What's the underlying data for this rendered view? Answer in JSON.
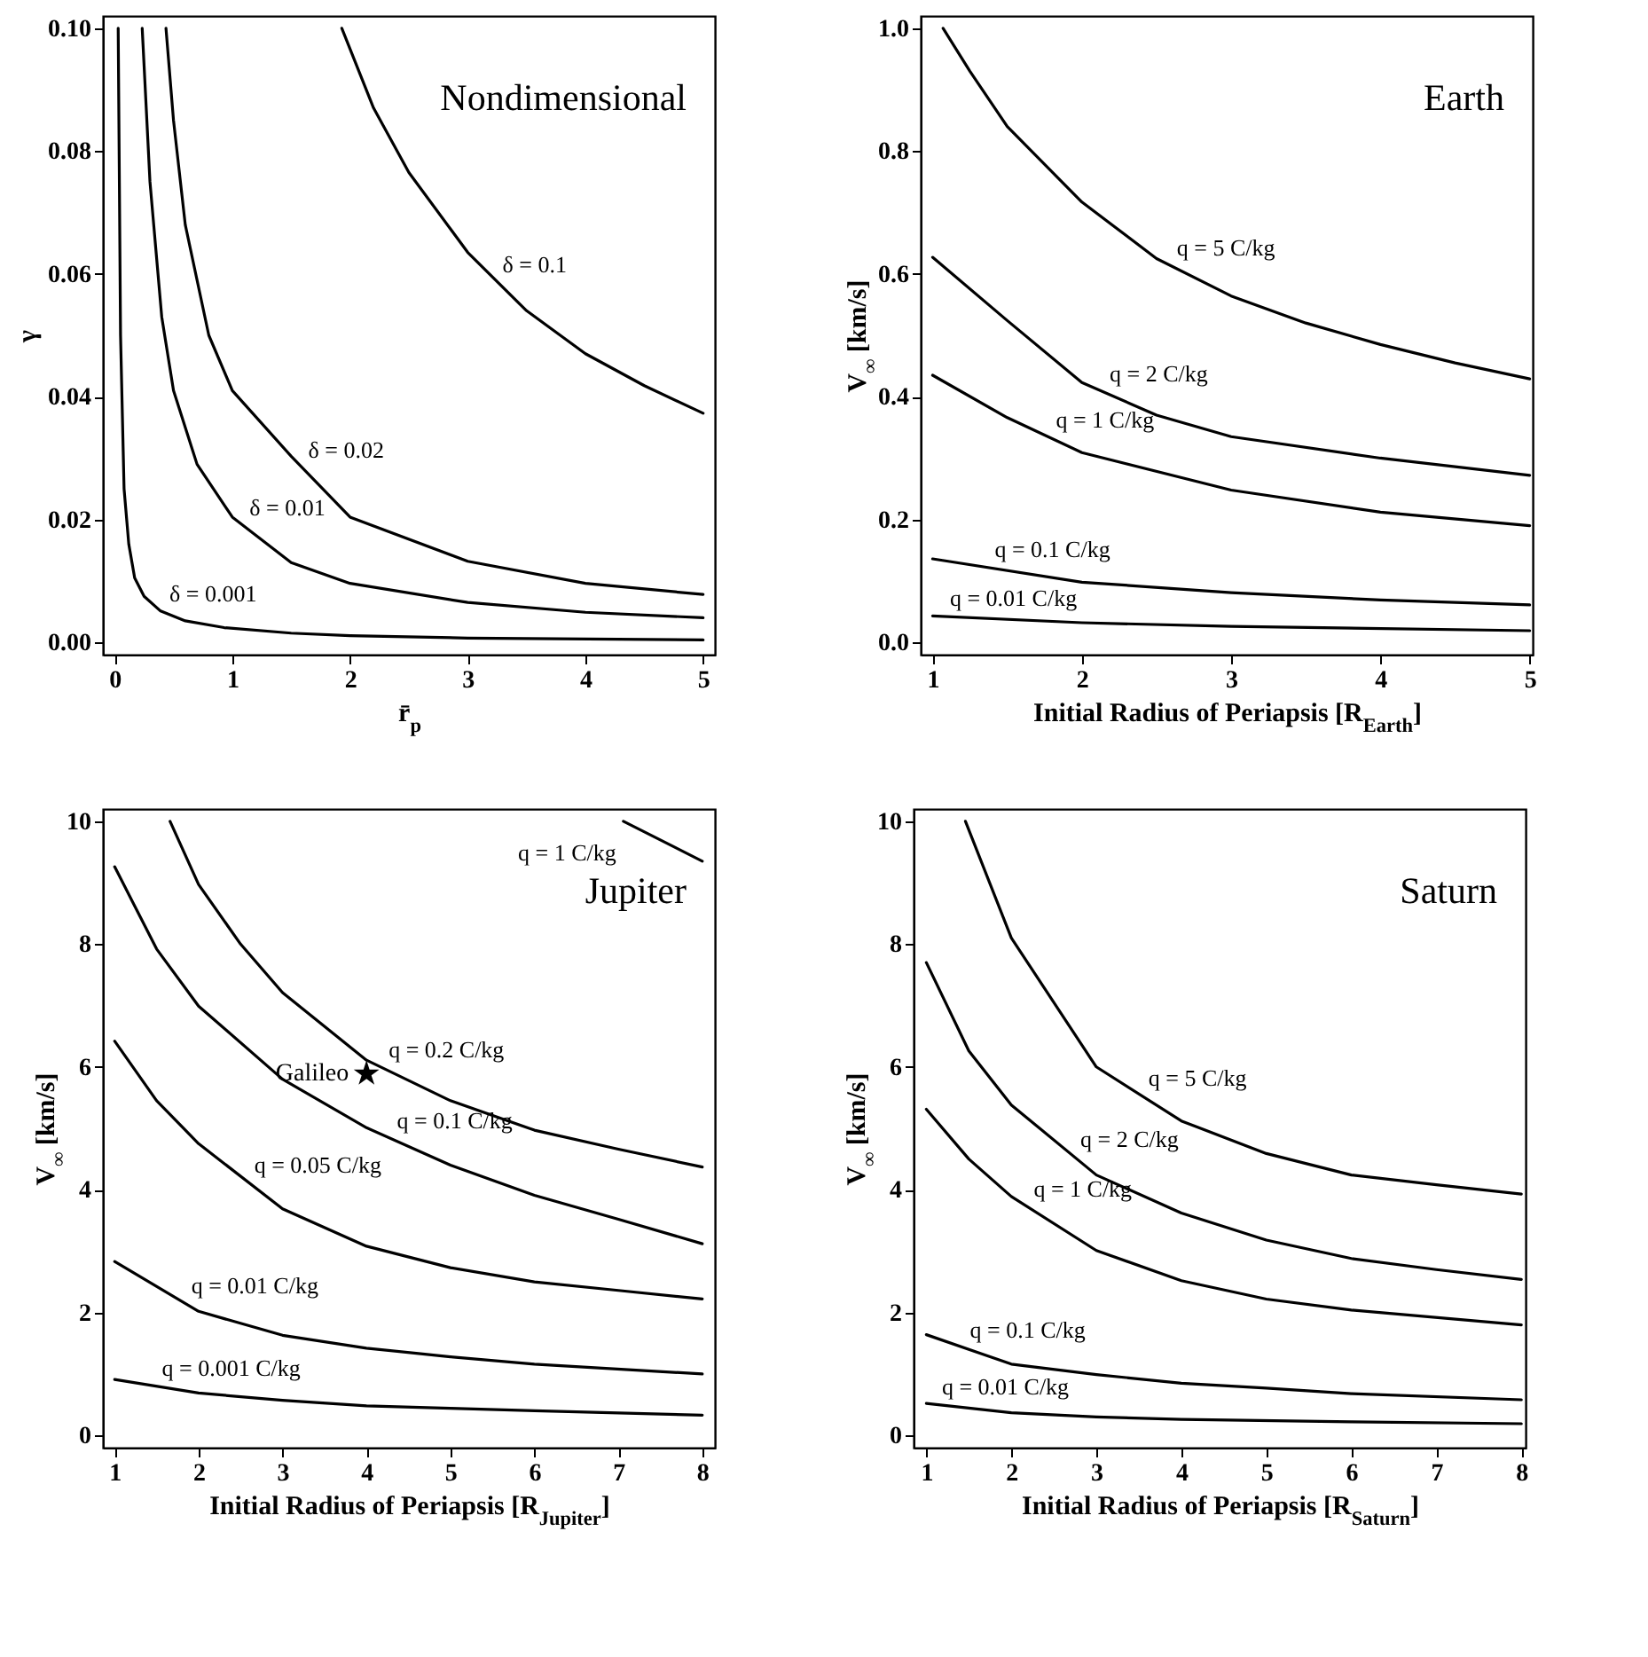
{
  "chart_data": [
    {
      "type": "line",
      "title": "Nondimensional",
      "xlabel": "r̄$_{p}$",
      "ylabel": "γ",
      "xlim": [
        -0.1,
        5.1
      ],
      "ylim": [
        -0.002,
        0.102
      ],
      "xticks": [
        0,
        1,
        2,
        3,
        4,
        5
      ],
      "yticks": [
        {
          "value": 0,
          "label": "0.00"
        },
        {
          "value": 0.02,
          "label": "0.02"
        },
        {
          "value": 0.04,
          "label": "0.04"
        },
        {
          "value": 0.06,
          "label": "0.06"
        },
        {
          "value": 0.08,
          "label": "0.08"
        },
        {
          "value": 0.1,
          "label": "0.10"
        }
      ],
      "series": [
        {
          "color": "#000000",
          "x": [
            1.93,
            2.2,
            2.5,
            3,
            3.5,
            4,
            4.5,
            5
          ],
          "values": [
            0.1,
            0.087,
            0.0765,
            0.0635,
            0.054,
            0.047,
            0.0418,
            0.0373
          ]
        },
        {
          "color": "#000000",
          "x": [
            0.436,
            0.5,
            0.6,
            0.8,
            1,
            1.5,
            2,
            3,
            4,
            5
          ],
          "values": [
            0.1,
            0.085,
            0.068,
            0.05,
            0.041,
            0.0303,
            0.0204,
            0.0132,
            0.0096,
            0.0078
          ]
        },
        {
          "color": "#000000",
          "x": [
            0.234,
            0.3,
            0.4,
            0.5,
            0.7,
            1,
            1.5,
            2,
            3,
            4,
            5
          ],
          "values": [
            0.1,
            0.075,
            0.053,
            0.041,
            0.029,
            0.0204,
            0.013,
            0.0096,
            0.0065,
            0.0049,
            0.004
          ]
        },
        {
          "color": "#000000",
          "x": [
            0.03,
            0.05,
            0.08,
            0.12,
            0.17,
            0.25,
            0.39,
            0.6,
            0.93,
            1.5,
            2,
            3,
            5
          ],
          "values": [
            0.1,
            0.05,
            0.025,
            0.016,
            0.0105,
            0.0075,
            0.0051,
            0.0035,
            0.0024,
            0.0015,
            0.0011,
            0.0007,
            0.0004
          ]
        }
      ],
      "annotations": [
        {
          "text": "δ = 0.1",
          "x": 3.25,
          "y": 0.0585
        },
        {
          "text": "δ = 0.02",
          "x": 1.6,
          "y": 0.0283
        },
        {
          "text": "δ = 0.01",
          "x": 1.1,
          "y": 0.0189
        },
        {
          "text": "δ = 0.001",
          "x": 0.42,
          "y": 0.0049
        }
      ]
    },
    {
      "type": "line",
      "title": "Earth",
      "xlabel": "Initial Radius of Periapsis [R$_{Earth}$]",
      "ylabel": "V$_{∞}$ [km/s]",
      "xlim": [
        0.92,
        5.02
      ],
      "ylim": [
        -0.02,
        1.02
      ],
      "xticks": [
        1,
        2,
        3,
        4,
        5
      ],
      "yticks": [
        {
          "value": 0,
          "label": "0.0"
        },
        {
          "value": 0.2,
          "label": "0.2"
        },
        {
          "value": 0.4,
          "label": "0.4"
        },
        {
          "value": 0.6,
          "label": "0.6"
        },
        {
          "value": 0.8,
          "label": "0.8"
        },
        {
          "value": 1,
          "label": "1.0"
        }
      ],
      "series": [
        {
          "color": "#000000",
          "x": [
            1.07,
            1.25,
            1.5,
            2,
            2.5,
            3,
            3.5,
            4,
            4.5,
            5
          ],
          "values": [
            1.0,
            0.93,
            0.84,
            0.717,
            0.625,
            0.564,
            0.52,
            0.485,
            0.455,
            0.429
          ]
        },
        {
          "color": "#000000",
          "x": [
            1,
            1.5,
            2,
            2.5,
            3,
            4,
            5
          ],
          "values": [
            0.627,
            0.524,
            0.423,
            0.37,
            0.335,
            0.3,
            0.272
          ]
        },
        {
          "color": "#000000",
          "x": [
            1,
            1.5,
            2,
            3,
            4,
            5
          ],
          "values": [
            0.435,
            0.366,
            0.309,
            0.248,
            0.212,
            0.19
          ]
        },
        {
          "color": "#000000",
          "x": [
            1,
            2,
            3,
            4,
            5
          ],
          "values": [
            0.136,
            0.098,
            0.081,
            0.069,
            0.061
          ]
        },
        {
          "color": "#000000",
          "x": [
            1,
            2,
            3,
            5
          ],
          "values": [
            0.043,
            0.032,
            0.026,
            0.019
          ]
        }
      ],
      "annotations": [
        {
          "text": "q = 5 C/kg",
          "x": 2.6,
          "y": 0.613
        },
        {
          "text": "q = 2 C/kg",
          "x": 2.15,
          "y": 0.407
        },
        {
          "text": "q = 1 C/kg",
          "x": 1.79,
          "y": 0.333
        },
        {
          "text": "q = 0.1 C/kg",
          "x": 1.38,
          "y": 0.122
        },
        {
          "text": "q = 0.01 C/kg",
          "x": 1.08,
          "y": 0.042
        }
      ]
    },
    {
      "type": "line",
      "title": "Jupiter",
      "xlabel": "Initial Radius of Periapsis [R$_{Jupiter}$]",
      "ylabel": "V$_{∞}$ [km/s]",
      "xlim": [
        0.86,
        8.15
      ],
      "ylim": [
        -0.2,
        10.2
      ],
      "xticks": [
        1,
        2,
        3,
        4,
        5,
        6,
        7,
        8
      ],
      "yticks": [
        0,
        2,
        4,
        6,
        8,
        10
      ],
      "series": [
        {
          "color": "#000000",
          "x": [
            7.06,
            8
          ],
          "values": [
            10,
            9.35
          ]
        },
        {
          "color": "#000000",
          "x": [
            1.66,
            2,
            2.5,
            3,
            4,
            5,
            6,
            7,
            8
          ],
          "values": [
            10,
            8.97,
            8.0,
            7.21,
            6.11,
            5.45,
            4.97,
            4.66,
            4.37
          ]
        },
        {
          "color": "#000000",
          "x": [
            1,
            1.5,
            2,
            3,
            4,
            5,
            6,
            7,
            8
          ],
          "values": [
            9.26,
            7.92,
            6.99,
            5.8,
            5.01,
            4.4,
            3.91,
            3.52,
            3.12
          ]
        },
        {
          "color": "#000000",
          "x": [
            1,
            1.5,
            2,
            3,
            4,
            5,
            6,
            7,
            8
          ],
          "values": [
            6.42,
            5.45,
            4.75,
            3.69,
            3.08,
            2.73,
            2.5,
            2.36,
            2.22
          ]
        },
        {
          "color": "#000000",
          "x": [
            1,
            2,
            3,
            4,
            5,
            6,
            8
          ],
          "values": [
            2.83,
            2.02,
            1.63,
            1.42,
            1.28,
            1.16,
            1.0
          ]
        },
        {
          "color": "#000000",
          "x": [
            1,
            2,
            3,
            4,
            5,
            6,
            8
          ],
          "values": [
            0.91,
            0.69,
            0.57,
            0.48,
            0.44,
            0.4,
            0.33
          ]
        },
        {
          "type": "scatter",
          "name": "Galileo",
          "color": "#000000",
          "marker": "star",
          "x": [
            4.0
          ],
          "values": [
            5.89
          ]
        }
      ],
      "annotations": [
        {
          "text": "q = 1 C/kg",
          "x": 7.06,
          "y": 10
        },
        {
          "text": "q = 0.2 C/kg",
          "x": 4.2,
          "y": 5.98
        },
        {
          "text": "q = 0.1 C/kg",
          "x": 4.3,
          "y": 4.83
        },
        {
          "text": "q = 0.05 C/kg",
          "x": 2.6,
          "y": 4.11
        },
        {
          "text": "q = 0.01 C/kg",
          "x": 1.85,
          "y": 2.14
        },
        {
          "text": "q = 0.001 C/kg",
          "x": 1.5,
          "y": 0.8
        }
      ]
    },
    {
      "type": "line",
      "title": "Saturn",
      "xlabel": "Initial Radius of Periapsis [R$_{Saturn}$]",
      "ylabel": "V$_{∞}$ [km/s]",
      "xlim": [
        0.85,
        8.05
      ],
      "ylim": [
        -0.2,
        10.2
      ],
      "xticks": [
        1,
        2,
        3,
        4,
        5,
        6,
        7,
        8
      ],
      "yticks": [
        0,
        2,
        4,
        6,
        8,
        10
      ],
      "series": [
        {
          "color": "#000000",
          "x": [
            1.46,
            2,
            3,
            4,
            5,
            6,
            7,
            8
          ],
          "values": [
            10,
            8.1,
            6.0,
            5.12,
            4.59,
            4.24,
            4.08,
            3.93
          ]
        },
        {
          "color": "#000000",
          "x": [
            1,
            1.5,
            2,
            3,
            4,
            5,
            6,
            7,
            8
          ],
          "values": [
            7.7,
            6.26,
            5.38,
            4.24,
            3.62,
            3.18,
            2.88,
            2.7,
            2.54
          ]
        },
        {
          "color": "#000000",
          "x": [
            1,
            1.5,
            2,
            3,
            4,
            5,
            6,
            8
          ],
          "values": [
            5.31,
            4.5,
            3.89,
            3.01,
            2.52,
            2.22,
            2.04,
            1.8
          ]
        },
        {
          "color": "#000000",
          "x": [
            1,
            2,
            3,
            4,
            5,
            6,
            8
          ],
          "values": [
            1.64,
            1.16,
            0.99,
            0.85,
            0.77,
            0.68,
            0.58
          ]
        },
        {
          "color": "#000000",
          "x": [
            1,
            2,
            3,
            4,
            6,
            8
          ],
          "values": [
            0.52,
            0.37,
            0.3,
            0.26,
            0.22,
            0.19
          ]
        }
      ],
      "annotations": [
        {
          "text": "q = 5 C/kg",
          "x": 3.55,
          "y": 5.52
        },
        {
          "text": "q = 2 C/kg",
          "x": 2.75,
          "y": 4.53
        },
        {
          "text": "q = 1 C/kg",
          "x": 2.2,
          "y": 3.71
        },
        {
          "text": "q = 0.1 C/kg",
          "x": 1.45,
          "y": 1.42
        },
        {
          "text": "q = 0.01 C/kg",
          "x": 1.12,
          "y": 0.5
        }
      ]
    }
  ]
}
